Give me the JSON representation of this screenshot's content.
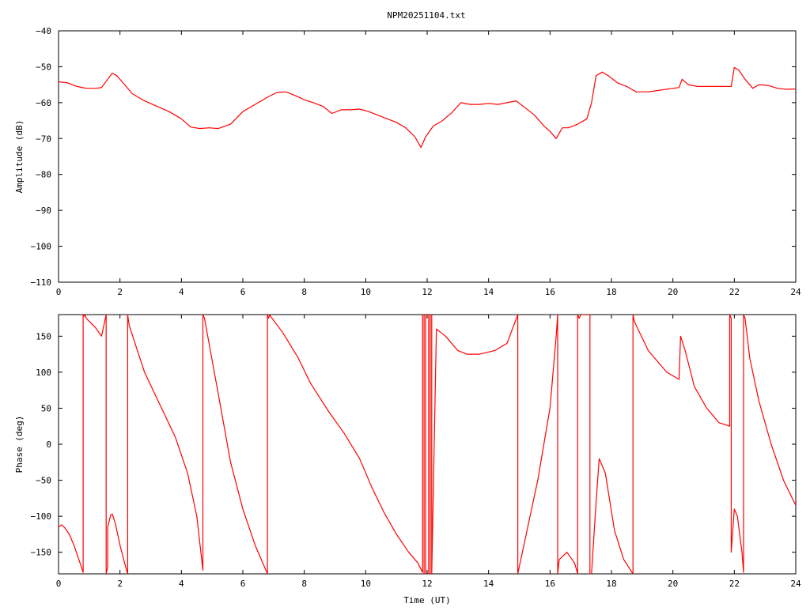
{
  "title": "NPM20251104.txt",
  "colors": {
    "trace": "#ff0000",
    "axes": "#000000",
    "background": "#ffffff"
  },
  "chart_data": [
    {
      "type": "line",
      "title": "NPM20251104.txt",
      "xlabel": "",
      "ylabel": "Amplitude (dB)",
      "xlim": [
        0,
        24
      ],
      "ylim": [
        -110,
        -40
      ],
      "xticks": [
        0,
        2,
        4,
        6,
        8,
        10,
        12,
        14,
        16,
        18,
        20,
        22,
        24
      ],
      "yticks": [
        -110,
        -100,
        -90,
        -80,
        -70,
        -60,
        -50,
        -40
      ],
      "xtick_labels": [
        "0",
        "2",
        "4",
        "6",
        "8",
        "10",
        "12",
        "14",
        "16",
        "18",
        "20",
        "22",
        "24"
      ],
      "ytick_labels": [
        "−110",
        "−100",
        "−90",
        "−80",
        "−70",
        "−60",
        "−50",
        "−40"
      ],
      "grid": false,
      "series": [
        {
          "color": "#ff0000",
          "x": [
            0,
            0.3,
            0.6,
            0.9,
            1.2,
            1.4,
            1.6,
            1.75,
            1.9,
            2.1,
            2.4,
            2.8,
            3.2,
            3.6,
            4.0,
            4.3,
            4.6,
            4.9,
            5.2,
            5.6,
            6.0,
            6.4,
            6.8,
            7.1,
            7.4,
            7.7,
            8.0,
            8.3,
            8.6,
            8.9,
            9.2,
            9.5,
            9.8,
            10.1,
            10.4,
            10.7,
            11.0,
            11.3,
            11.6,
            11.8,
            11.95,
            12.2,
            12.5,
            12.8,
            13.1,
            13.4,
            13.7,
            14.0,
            14.3,
            14.6,
            14.9,
            15.2,
            15.5,
            15.8,
            16.0,
            16.2,
            16.4,
            16.6,
            16.9,
            17.2,
            17.35,
            17.5,
            17.7,
            17.9,
            18.2,
            18.5,
            18.8,
            19.2,
            19.6,
            20.0,
            20.2,
            20.3,
            20.5,
            20.8,
            21.2,
            21.6,
            21.9,
            22.0,
            22.15,
            22.35,
            22.6,
            22.8,
            23.1,
            23.4,
            23.7,
            24.0
          ],
          "y": [
            -54.2,
            -54.5,
            -55.5,
            -56.0,
            -56.0,
            -55.8,
            -53.5,
            -51.8,
            -52.5,
            -54.5,
            -57.5,
            -59.5,
            -61.0,
            -62.5,
            -64.5,
            -66.8,
            -67.2,
            -67.0,
            -67.2,
            -66.0,
            -62.5,
            -60.5,
            -58.5,
            -57.2,
            -57.0,
            -58.0,
            -59.2,
            -60.0,
            -61.0,
            -63.0,
            -62.0,
            -62.0,
            -61.8,
            -62.5,
            -63.5,
            -64.5,
            -65.5,
            -67.0,
            -69.5,
            -72.5,
            -69.5,
            -66.5,
            -65.0,
            -62.8,
            -60.0,
            -60.5,
            -60.5,
            -60.2,
            -60.5,
            -60.0,
            -59.5,
            -61.5,
            -63.5,
            -66.5,
            -68.0,
            -70.0,
            -67.0,
            -67.0,
            -66.0,
            -64.5,
            -60.0,
            -52.5,
            -51.5,
            -52.5,
            -54.5,
            -55.5,
            -57.0,
            -57.0,
            -56.5,
            -56.0,
            -55.8,
            -53.5,
            -55.0,
            -55.5,
            -55.5,
            -55.5,
            -55.5,
            -50.2,
            -51.0,
            -53.5,
            -56.0,
            -55.0,
            -55.2,
            -56.0,
            -56.3,
            -56.2
          ]
        }
      ]
    },
    {
      "type": "line",
      "title": "",
      "xlabel": "Time (UT)",
      "ylabel": "Phase (deg)",
      "xlim": [
        0,
        24
      ],
      "ylim": [
        -180,
        180
      ],
      "xticks": [
        0,
        2,
        4,
        6,
        8,
        10,
        12,
        14,
        16,
        18,
        20,
        22,
        24
      ],
      "yticks": [
        -150,
        -100,
        -50,
        0,
        50,
        100,
        150
      ],
      "xtick_labels": [
        "0",
        "2",
        "4",
        "6",
        "8",
        "10",
        "12",
        "14",
        "16",
        "18",
        "20",
        "22",
        "24"
      ],
      "ytick_labels": [
        "−150",
        "−100",
        "−50",
        "0",
        "50",
        "100",
        "150"
      ],
      "grid": false,
      "series": [
        {
          "color": "#ff0000",
          "x": [
            0,
            0.1,
            0.2,
            0.35,
            0.5,
            0.7,
            0.8,
            0.8,
            0.83,
            0.86,
            0.86,
            0.9,
            1.2,
            1.4,
            1.55,
            1.55,
            1.6,
            1.6,
            1.7,
            1.75,
            1.85,
            2.0,
            2.15,
            2.25,
            2.25,
            2.3,
            2.8,
            3.3,
            3.8,
            4.2,
            4.5,
            4.7,
            4.7,
            4.75,
            5.2,
            5.6,
            6.0,
            6.4,
            6.8,
            6.8,
            6.83,
            6.86,
            6.86,
            7.3,
            7.8,
            8.2,
            8.8,
            9.3,
            9.8,
            10.2,
            10.6,
            11.0,
            11.4,
            11.7,
            11.85,
            11.85,
            11.9,
            11.9,
            11.95,
            11.95,
            12.05,
            12.05,
            12.1,
            12.1,
            12.15,
            12.15,
            12.3,
            12.6,
            13.0,
            13.3,
            13.7,
            14.2,
            14.6,
            14.95,
            14.95,
            15.0,
            15.6,
            16.0,
            16.2,
            16.25,
            16.25,
            16.3,
            16.55,
            16.8,
            16.9,
            16.9,
            16.95,
            16.95,
            17.0,
            17.3,
            17.3,
            17.35,
            17.5,
            17.6,
            17.8,
            18.1,
            18.4,
            18.7,
            18.7,
            18.75,
            19.2,
            19.8,
            20.2,
            20.25,
            20.4,
            20.7,
            21.1,
            21.5,
            21.85,
            21.85,
            21.9,
            21.9,
            22.0,
            22.1,
            22.25,
            22.3,
            22.3,
            22.35,
            22.5,
            22.8,
            23.2,
            23.6,
            24.0
          ],
          "y": [
            -115,
            -112,
            -116,
            -125,
            -140,
            -165,
            -178,
            180,
            178,
            178,
            180,
            175,
            162,
            150,
            180,
            -180,
            -170,
            -115,
            -98,
            -97,
            -110,
            -140,
            -165,
            -180,
            180,
            165,
            100,
            55,
            10,
            -40,
            -100,
            -175,
            180,
            175,
            70,
            -25,
            -90,
            -140,
            -180,
            180,
            175,
            178,
            180,
            155,
            120,
            85,
            45,
            15,
            -20,
            -60,
            -95,
            -125,
            -150,
            -165,
            -178,
            180,
            180,
            -180,
            -180,
            180,
            180,
            -180,
            -180,
            180,
            180,
            -180,
            160,
            150,
            130,
            125,
            125,
            130,
            140,
            180,
            -180,
            -170,
            -50,
            50,
            150,
            180,
            -180,
            -160,
            -150,
            -165,
            -180,
            180,
            175,
            175,
            180,
            180,
            -180,
            -180,
            -80,
            -20,
            -40,
            -120,
            -160,
            -180,
            180,
            170,
            130,
            100,
            90,
            150,
            130,
            80,
            50,
            30,
            25,
            180,
            175,
            -150,
            -90,
            -100,
            -150,
            -178,
            180,
            175,
            120,
            60,
            0,
            -50,
            -85
          ]
        }
      ]
    }
  ]
}
